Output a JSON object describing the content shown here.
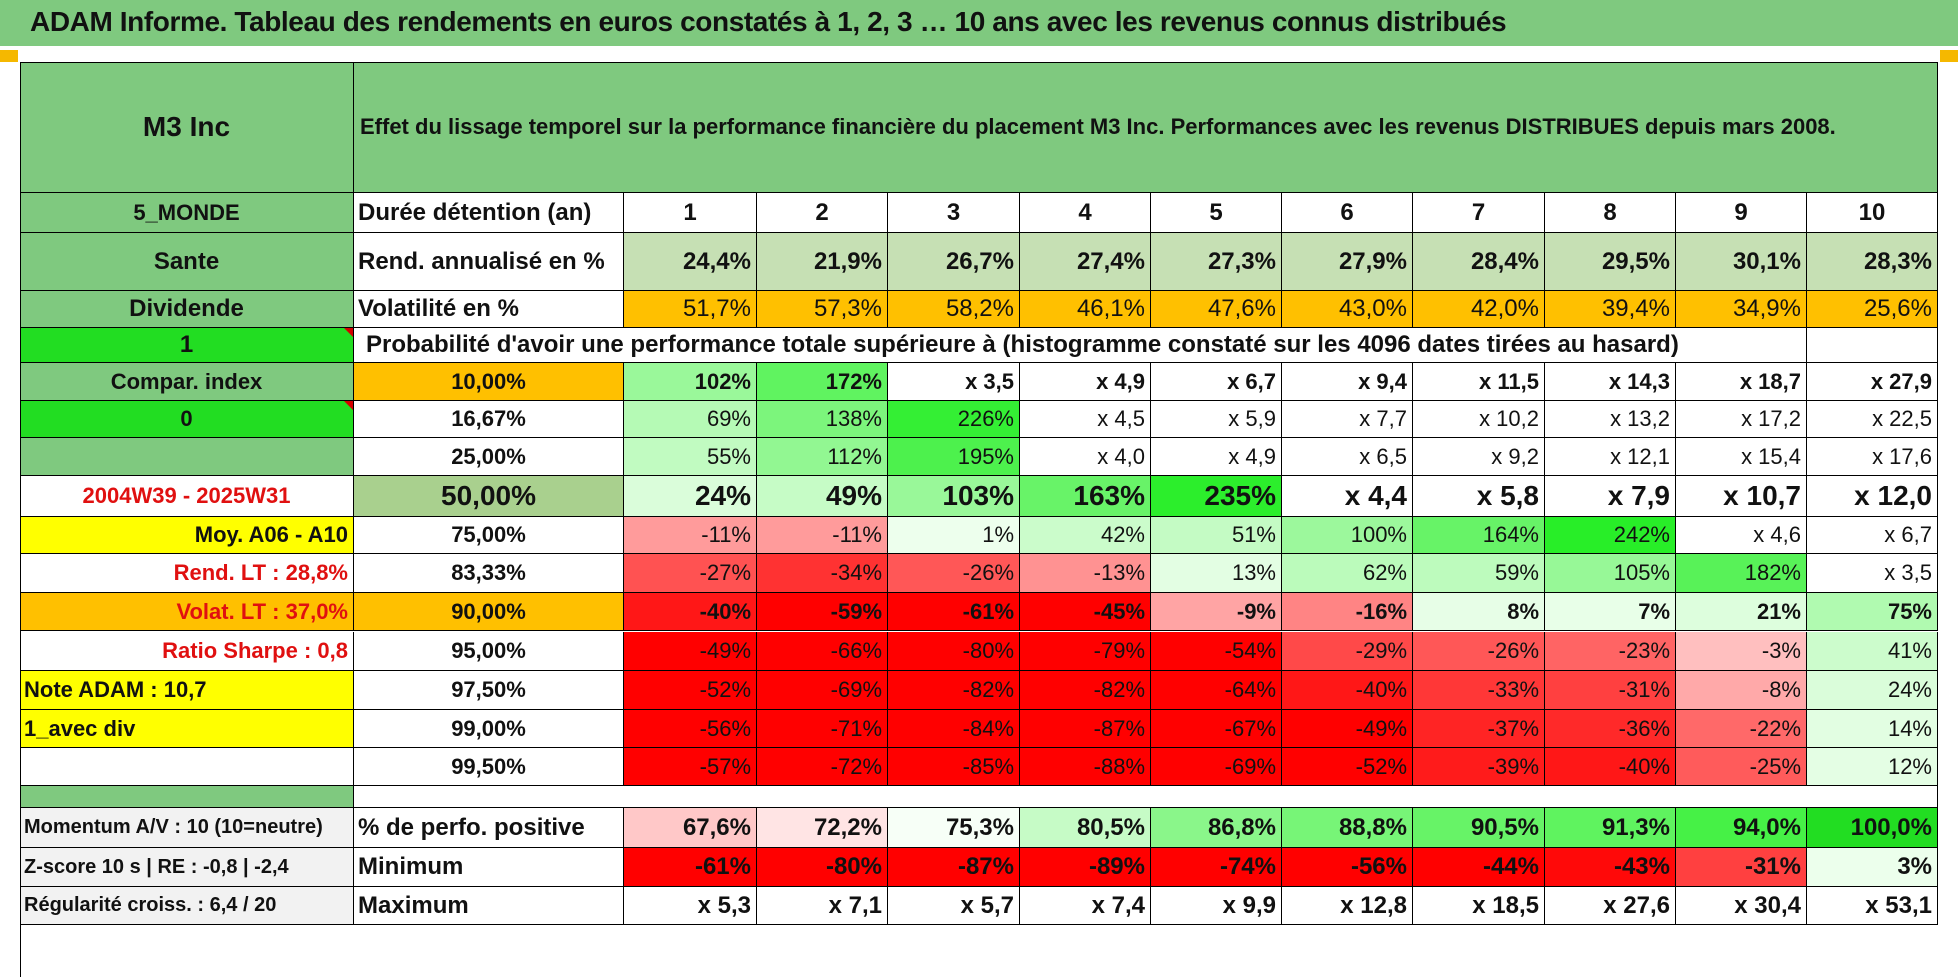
{
  "title": "ADAM Informe. Tableau des rendements en euros constatés à 1, 2, 3 … 10 ans avec les revenus connus distribués",
  "fund_name": "M3 Inc",
  "header_text": "Effet du lissage temporel sur la performance financière du placement M3 Inc. Performances avec les revenus DISTRIBUES depuis mars 2008.",
  "left": {
    "zone": "5_MONDE",
    "sector": "Sante",
    "income_type": "Dividende",
    "flag_1": "1",
    "compar_index": "Compar. index",
    "flag_0": "0",
    "period": "2004W39 - 2025W31",
    "moy": "Moy. A06 - A10",
    "rend_lt": "Rend. LT :    28,8%",
    "volat_lt": "Volat. LT :    37,0%",
    "sharpe": "Ratio Sharpe :    0,8",
    "note": "Note ADAM : 10,7",
    "avec_div": "1_avec div",
    "momentum": "Momentum A/V : 10 (10=neutre)",
    "zscore": "Z-score 10 s | RE : -0,8 | -2,4",
    "regularite": "Régularité croiss. : 6,4 / 20"
  },
  "labels": {
    "duree": "Durée détention (an)",
    "rend": "Rend. annualisé en %",
    "vol": "Volatilité en %",
    "prob": "Probabilité d'avoir une performance totale supérieure à (histogramme constaté sur les 4096 dates tirées au hasard)",
    "pos": "% de perfo. positive",
    "min": "Minimum",
    "max": "Maximum"
  },
  "years": [
    "1",
    "2",
    "3",
    "4",
    "5",
    "6",
    "7",
    "8",
    "9",
    "10"
  ],
  "rend": [
    "24,4%",
    "21,9%",
    "26,7%",
    "27,4%",
    "27,3%",
    "27,9%",
    "28,4%",
    "29,5%",
    "30,1%",
    "28,3%"
  ],
  "vol": [
    "51,7%",
    "57,3%",
    "58,2%",
    "46,1%",
    "47,6%",
    "43,0%",
    "42,0%",
    "39,4%",
    "34,9%",
    "25,6%"
  ],
  "percentiles": [
    "10,00%",
    "16,67%",
    "25,00%",
    "50,00%",
    "75,00%",
    "83,33%",
    "90,00%",
    "95,00%",
    "97,50%",
    "99,00%",
    "99,50%"
  ],
  "perf": [
    [
      "102%",
      "172%",
      "x 3,5",
      "x 4,9",
      "x 6,7",
      "x 9,4",
      "x 11,5",
      "x 14,3",
      "x 18,7",
      "x 27,9"
    ],
    [
      "69%",
      "138%",
      "226%",
      "x 4,5",
      "x 5,9",
      "x 7,7",
      "x 10,2",
      "x 13,2",
      "x 17,2",
      "x 22,5"
    ],
    [
      "55%",
      "112%",
      "195%",
      "x 4,0",
      "x 4,9",
      "x 6,5",
      "x 9,2",
      "x 12,1",
      "x 15,4",
      "x 17,6"
    ],
    [
      "24%",
      "49%",
      "103%",
      "163%",
      "235%",
      "x 4,4",
      "x 5,8",
      "x 7,9",
      "x 10,7",
      "x 12,0"
    ],
    [
      "-11%",
      "-11%",
      "1%",
      "42%",
      "51%",
      "100%",
      "164%",
      "242%",
      "x 4,6",
      "x 6,7"
    ],
    [
      "-27%",
      "-34%",
      "-26%",
      "-13%",
      "13%",
      "62%",
      "59%",
      "105%",
      "182%",
      "x 3,5"
    ],
    [
      "-40%",
      "-59%",
      "-61%",
      "-45%",
      "-9%",
      "-16%",
      "8%",
      "7%",
      "21%",
      "75%"
    ],
    [
      "-49%",
      "-66%",
      "-80%",
      "-79%",
      "-54%",
      "-29%",
      "-26%",
      "-23%",
      "-3%",
      "41%"
    ],
    [
      "-52%",
      "-69%",
      "-82%",
      "-82%",
      "-64%",
      "-40%",
      "-33%",
      "-31%",
      "-8%",
      "24%"
    ],
    [
      "-56%",
      "-71%",
      "-84%",
      "-87%",
      "-67%",
      "-49%",
      "-37%",
      "-36%",
      "-22%",
      "14%"
    ],
    [
      "-57%",
      "-72%",
      "-85%",
      "-88%",
      "-69%",
      "-52%",
      "-39%",
      "-40%",
      "-25%",
      "12%"
    ]
  ],
  "pos": [
    "67,6%",
    "72,2%",
    "75,3%",
    "80,5%",
    "86,8%",
    "88,8%",
    "90,5%",
    "91,3%",
    "94,0%",
    "100,0%"
  ],
  "min": [
    "-61%",
    "-80%",
    "-87%",
    "-89%",
    "-74%",
    "-56%",
    "-44%",
    "-43%",
    "-31%",
    "3%"
  ],
  "max": [
    "x 5,3",
    "x 7,1",
    "x 5,7",
    "x 7,4",
    "x 9,9",
    "x 12,8",
    "x 18,5",
    "x 27,6",
    "x 30,4",
    "x 53,1"
  ],
  "colors": {
    "header_green": "#7fc97f",
    "label_green": "#7fc97f",
    "bright_green": "#22dd22",
    "orange": "#ffc000",
    "yellow": "#ffff00",
    "red_text": "#e01010",
    "rend_bg": "#c6e0b4",
    "median_pct_bg": "#a9d08e",
    "footer_bg": "#f2f2f2"
  }
}
